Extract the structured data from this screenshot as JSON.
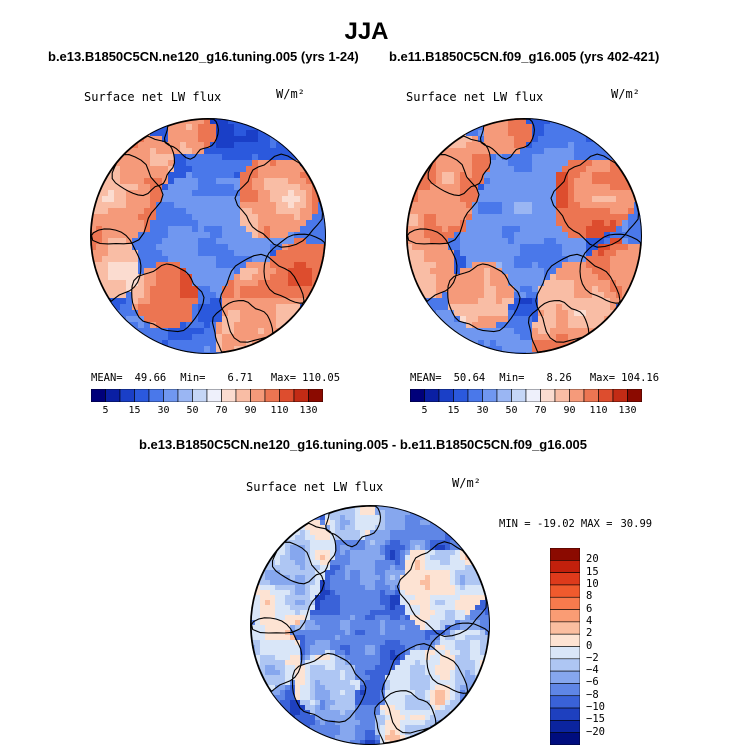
{
  "page": {
    "title": "JJA"
  },
  "chart_data": [
    {
      "type": "heatmap",
      "projection": "polar stereographic (north pole)",
      "subtitle": "b.e13.B1850C5CN.ne120_g16.tuning.005 (yrs 1-24)",
      "variable": "Surface net LW flux",
      "units": "W/m²",
      "stats": {
        "mean_label": "MEAN=",
        "mean": "49.66",
        "min_label": "Min=",
        "min": "6.71",
        "max_label": "Max=",
        "max": "110.05"
      },
      "colorbar": {
        "orientation": "horizontal",
        "labels": [
          "5",
          "15",
          "30",
          "50",
          "70",
          "90",
          "110",
          "130"
        ],
        "colors": [
          "#00007a",
          "#0a1fa3",
          "#1a3fc7",
          "#2b59dd",
          "#4a78ea",
          "#7097f0",
          "#9ab6f3",
          "#c5d6f6",
          "#eef0fb",
          "#fbdcd0",
          "#f9bda5",
          "#f59a7a",
          "#ec7552",
          "#dd4d2e",
          "#c22b15",
          "#8b0a00"
        ]
      }
    },
    {
      "type": "heatmap",
      "projection": "polar stereographic (north pole)",
      "subtitle": "b.e11.B1850C5CN.f09_g16.005 (yrs 402-421)",
      "variable": "Surface net LW flux",
      "units": "W/m²",
      "stats": {
        "mean_label": "MEAN=",
        "mean": "50.64",
        "min_label": "Min=",
        "min": "8.26",
        "max_label": "Max=",
        "max": "104.16"
      },
      "colorbar": {
        "orientation": "horizontal",
        "labels": [
          "5",
          "15",
          "30",
          "50",
          "70",
          "90",
          "110",
          "130"
        ],
        "colors": [
          "#00007a",
          "#0a1fa3",
          "#1a3fc7",
          "#2b59dd",
          "#4a78ea",
          "#7097f0",
          "#9ab6f3",
          "#c5d6f6",
          "#eef0fb",
          "#fbdcd0",
          "#f9bda5",
          "#f59a7a",
          "#ec7552",
          "#dd4d2e",
          "#c22b15",
          "#8b0a00"
        ]
      }
    },
    {
      "type": "heatmap",
      "projection": "polar stereographic (north pole)",
      "subtitle": "b.e13.B1850C5CN.ne120_g16.tuning.005 - b.e11.B1850C5CN.f09_g16.005",
      "variable": "Surface net LW flux",
      "units": "W/m²",
      "stats": {
        "min_label": "MIN =",
        "min": "-19.02",
        "max_label": "MAX =",
        "max": "30.99"
      },
      "colorbar": {
        "orientation": "vertical",
        "labels": [
          "20",
          "15",
          "10",
          "8",
          "6",
          "4",
          "2",
          "0",
          "−2",
          "−4",
          "−6",
          "−8",
          "−10",
          "−15",
          "−20"
        ],
        "colors": [
          "#8b0a00",
          "#c2200c",
          "#de3a1b",
          "#f05a2d",
          "#f87a4d",
          "#fa9c74",
          "#fbbea0",
          "#fde3d3",
          "#d9e6f8",
          "#aec6f3",
          "#86a7ee",
          "#5f86e6",
          "#3a62d8",
          "#1e40bf",
          "#0b249f",
          "#000d7e"
        ]
      }
    }
  ]
}
